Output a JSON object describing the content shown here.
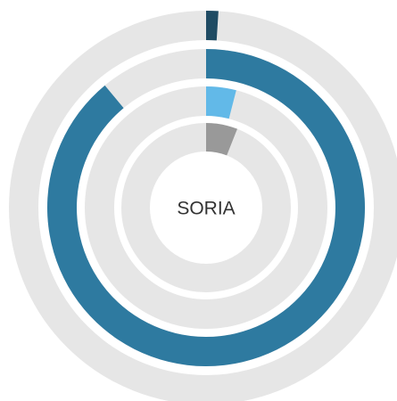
{
  "chart_data": {
    "type": "radial-bar",
    "center_label": "SORIA",
    "values": [
      1,
      89,
      4,
      6
    ],
    "colors": [
      "#1f4b63",
      "#2e7aa0",
      "#62b9e8",
      "#999999"
    ],
    "xlim": [
      0,
      100
    ],
    "track_color": "#e6e6e6"
  }
}
